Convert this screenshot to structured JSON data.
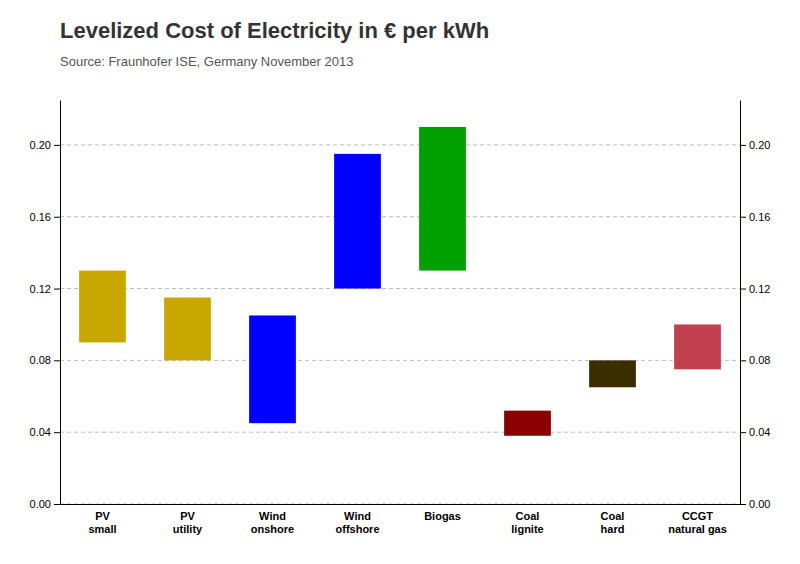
{
  "chart_data": {
    "type": "bar",
    "title": "Levelized Cost of Electricity in € per kWh",
    "subtitle": "Source: Fraunhofer ISE, Germany November 2013",
    "categories": [
      "PV\nsmall",
      "PV\nutility",
      "Wind\nonshore",
      "Wind\noffshore",
      "Biogas",
      "Coal\nlignite",
      "Coal\nhard",
      "CCGT\nnatural gas"
    ],
    "bottoms": [
      0.09,
      0.08,
      0.045,
      0.12,
      0.13,
      0.038,
      0.065,
      0.075
    ],
    "tops": [
      0.13,
      0.115,
      0.105,
      0.195,
      0.21,
      0.052,
      0.08,
      0.1
    ],
    "colors": [
      "#c8a800",
      "#c8a800",
      "#0000ff",
      "#0000ff",
      "#00a000",
      "#8b0000",
      "#3a2e00",
      "#c04050"
    ],
    "ylim": [
      0.0,
      0.225
    ],
    "yticks": [
      {
        "value": 0.0,
        "label": "0.00"
      },
      0.04,
      0.08,
      0.12,
      0.16,
      {
        "value": 0.2,
        "label": "0.20"
      }
    ],
    "y2lim": [
      0.0,
      0.225
    ],
    "y2ticks": [
      {
        "value": 0.0,
        "label": "0.00"
      },
      0.04,
      0.08,
      0.12,
      0.16,
      {
        "value": 0.2,
        "label": "0.20"
      }
    ],
    "grid": true
  }
}
